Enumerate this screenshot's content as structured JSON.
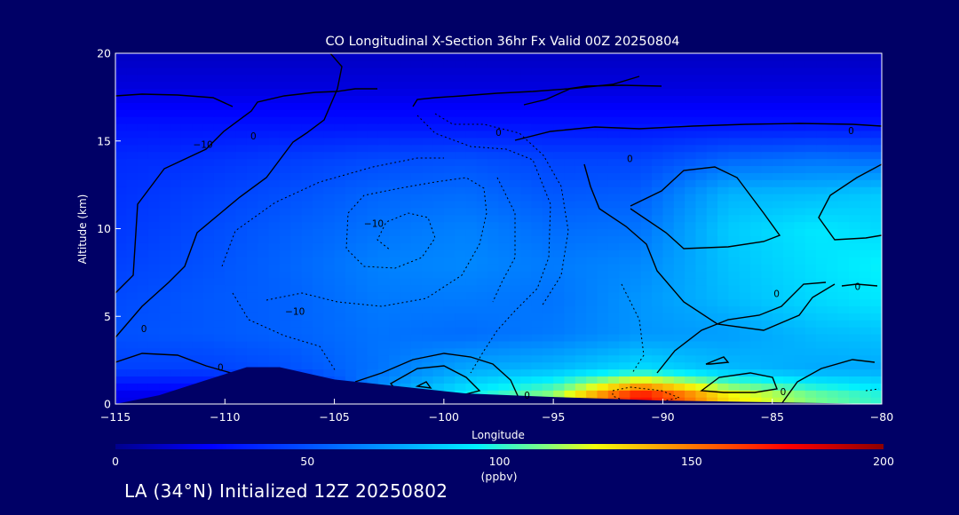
{
  "chart_data": {
    "type": "heatmap",
    "title": "CO Longitudinal X-Section 36hr  Fx Valid 00Z 20250804",
    "xlabel": "Longitude",
    "ylabel": "Altitude (km)",
    "xlim": [
      -115,
      -80
    ],
    "ylim": [
      0,
      20
    ],
    "x_ticks": [
      "−115",
      "−110",
      "−105",
      "−100",
      "−95",
      "−90",
      "−85",
      "−80"
    ],
    "y_ticks": [
      "0",
      "5",
      "10",
      "15",
      "20"
    ],
    "colorbar": {
      "ticks": [
        "0",
        "50",
        "100",
        "150",
        "200"
      ],
      "unit": "(ppbv)",
      "range": [
        0,
        200
      ]
    },
    "contour_labels": [
      "−10",
      "−10",
      "−10",
      "0",
      "0",
      "0",
      "0",
      "0",
      "0",
      "0",
      "0",
      "0",
      "0"
    ],
    "terrain": [
      {
        "lon": -115,
        "alt": 0.0
      },
      {
        "lon": -113,
        "alt": 0.5
      },
      {
        "lon": -111,
        "alt": 1.3
      },
      {
        "lon": -109,
        "alt": 2.1
      },
      {
        "lon": -107.5,
        "alt": 2.1
      },
      {
        "lon": -105,
        "alt": 1.4
      },
      {
        "lon": -102,
        "alt": 1.0
      },
      {
        "lon": -99,
        "alt": 0.6
      },
      {
        "lon": -95,
        "alt": 0.4
      },
      {
        "lon": -90,
        "alt": 0.2
      },
      {
        "lon": -85,
        "alt": 0.1
      },
      {
        "lon": -80,
        "alt": 0.0
      }
    ],
    "field": {
      "lon": [
        -115,
        -111,
        -107,
        -103,
        -99,
        -95,
        -91,
        -87,
        -83,
        -80
      ],
      "alt": [
        0.5,
        2,
        4,
        6,
        8,
        10,
        12,
        14,
        16,
        18,
        20
      ],
      "values_ppbv": [
        [
          20,
          20,
          20,
          70,
          95,
          115,
          175,
          130,
          110,
          100
        ],
        [
          45,
          45,
          50,
          60,
          75,
          80,
          90,
          80,
          75,
          75
        ],
        [
          50,
          52,
          55,
          60,
          58,
          62,
          70,
          72,
          80,
          82
        ],
        [
          48,
          52,
          55,
          62,
          62,
          60,
          70,
          80,
          88,
          92
        ],
        [
          45,
          50,
          56,
          64,
          66,
          62,
          66,
          82,
          90,
          95
        ],
        [
          42,
          48,
          54,
          60,
          64,
          58,
          60,
          84,
          92,
          88
        ],
        [
          40,
          45,
          50,
          56,
          58,
          52,
          54,
          78,
          80,
          84
        ],
        [
          38,
          40,
          44,
          48,
          50,
          46,
          46,
          56,
          60,
          58
        ],
        [
          30,
          30,
          30,
          30,
          30,
          30,
          30,
          30,
          30,
          30
        ],
        [
          18,
          18,
          18,
          18,
          18,
          18,
          18,
          18,
          18,
          18
        ],
        [
          12,
          12,
          12,
          12,
          12,
          12,
          12,
          12,
          12,
          12
        ]
      ]
    }
  },
  "footer": {
    "text": "LA (34°N) Initialized 12Z 20250802"
  },
  "colors": {
    "background": "#000066",
    "text": "#ffffff",
    "contour": "#000000",
    "terrain": "#000066"
  }
}
